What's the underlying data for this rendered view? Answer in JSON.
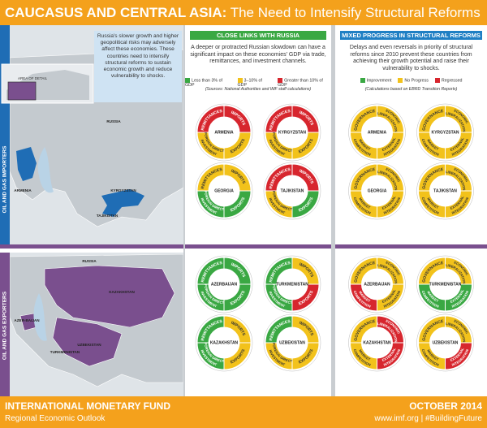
{
  "header": {
    "title_bold": "CAUCASUS AND CENTRAL ASIA:",
    "title_rest": "The Need to Intensify Structural Reforms"
  },
  "intro": "Russia's slower growth and higher geopolitical risks may adversely affect these economies. These countries need to intensify structural reforms to sustain economic growth and reduce vulnerability to shocks.",
  "inset_label": "AREA OF DETAIL",
  "groups": [
    {
      "name": "OIL AND GAS IMPORTERS",
      "color": "#1f6db5",
      "map_labels": [
        "RUSSIA",
        "ARMENIA",
        "KYRGYZSTAN",
        "TAJIKISTAN"
      ]
    },
    {
      "name": "OIL AND GAS EXPORTERS",
      "color": "#7a4f8e",
      "map_labels": [
        "RUSSIA",
        "KAZAKHSTAN",
        "AZER-BAIJAN",
        "TURKMENISTAN",
        "UZBEKISTAN"
      ]
    }
  ],
  "panels": [
    {
      "title": "CLOSE LINKS WITH RUSSIA",
      "color": "#3aa843",
      "description": "A deeper or protracted Russian slowdown can have a significant impact on these economies' GDP via trade, remittances, and investment channels.",
      "legend": [
        {
          "label": "Less than 3% of GDP",
          "color": "#3aa843"
        },
        {
          "label": "3–10% of GDP",
          "color": "#f2c21b"
        },
        {
          "label": "Greater than 10% of GDP",
          "color": "#d7262e"
        }
      ],
      "note": "(Sources: National Authorities and IMF staff calculations)",
      "segments": [
        "REMITTANCES",
        "IMPORTS",
        "EXPORTS",
        "FOREIGN DIRECT INVESTMENT"
      ],
      "countries": [
        {
          "name": "ARMENIA",
          "colors": [
            "#d7262e",
            "#d7262e",
            "#f2c21b",
            "#f2c21b"
          ]
        },
        {
          "name": "KYRGYZSTAN",
          "colors": [
            "#d7262e",
            "#d7262e",
            "#f2c21b",
            "#f2c21b"
          ]
        },
        {
          "name": "GEORGIA",
          "colors": [
            "#f2c21b",
            "#f2c21b",
            "#3aa843",
            "#3aa843"
          ]
        },
        {
          "name": "TAJIKISTAN",
          "colors": [
            "#d7262e",
            "#d7262e",
            "#3aa843",
            "#f2c21b"
          ]
        },
        {
          "name": "AZERBAIJAN",
          "colors": [
            "#3aa843",
            "#3aa843",
            "#3aa843",
            "#3aa843"
          ]
        },
        {
          "name": "TURKMENISTAN",
          "colors": [
            "#3aa843",
            "#f2c21b",
            "#d7262e",
            "#3aa843"
          ]
        },
        {
          "name": "KAZAKHSTAN",
          "colors": [
            "#3aa843",
            "#f2c21b",
            "#f2c21b",
            "#3aa843"
          ]
        },
        {
          "name": "UZBEKISTAN",
          "colors": [
            "#3aa843",
            "#f2c21b",
            "#f2c21b",
            "#f2c21b"
          ]
        }
      ]
    },
    {
      "title": "MIXED PROGRESS IN STRUCTURAL REFORMS",
      "color": "#1f7fc4",
      "description": "Delays and even reversals in priority of structural reforms since 2010 prevent these countries from achieving their growth potential and raise their vulnerability to shocks.",
      "legend": [
        {
          "label": "Improvement",
          "color": "#3aa843"
        },
        {
          "label": "No Progress",
          "color": "#f2c21b"
        },
        {
          "label": "Regressed",
          "color": "#d7262e"
        }
      ],
      "note": "(Calculations based on EBRD Transition Reports)",
      "segments": [
        "GOVERNANCE",
        "ECONOMIC LIBERALIZATION",
        "EXTERNAL INTEGRATION",
        "MARKET COMPETITION"
      ],
      "countries": [
        {
          "name": "ARMENIA",
          "colors": [
            "#f2c21b",
            "#f2c21b",
            "#f2c21b",
            "#f2c21b"
          ]
        },
        {
          "name": "KYRGYZSTAN",
          "colors": [
            "#f2c21b",
            "#f2c21b",
            "#f2c21b",
            "#f2c21b"
          ]
        },
        {
          "name": "GEORGIA",
          "colors": [
            "#f2c21b",
            "#f2c21b",
            "#f2c21b",
            "#f2c21b"
          ]
        },
        {
          "name": "TAJIKISTAN",
          "colors": [
            "#f2c21b",
            "#f2c21b",
            "#f2c21b",
            "#f2c21b"
          ]
        },
        {
          "name": "AZERBAIJAN",
          "colors": [
            "#f2c21b",
            "#f2c21b",
            "#f2c21b",
            "#d7262e"
          ]
        },
        {
          "name": "TURKMENISTAN",
          "colors": [
            "#f2c21b",
            "#f2c21b",
            "#3aa843",
            "#3aa843"
          ]
        },
        {
          "name": "KAZAKHSTAN",
          "colors": [
            "#f2c21b",
            "#d7262e",
            "#d7262e",
            "#f2c21b"
          ]
        },
        {
          "name": "UZBEKISTAN",
          "colors": [
            "#f2c21b",
            "#f2c21b",
            "#d7262e",
            "#f2c21b"
          ]
        }
      ]
    }
  ],
  "footer": {
    "org": "International Monetary Fund",
    "publication": "Regional Economic Outlook",
    "date": "OCTOBER 2014",
    "links": "www.imf.org | #BuildingFuture"
  }
}
